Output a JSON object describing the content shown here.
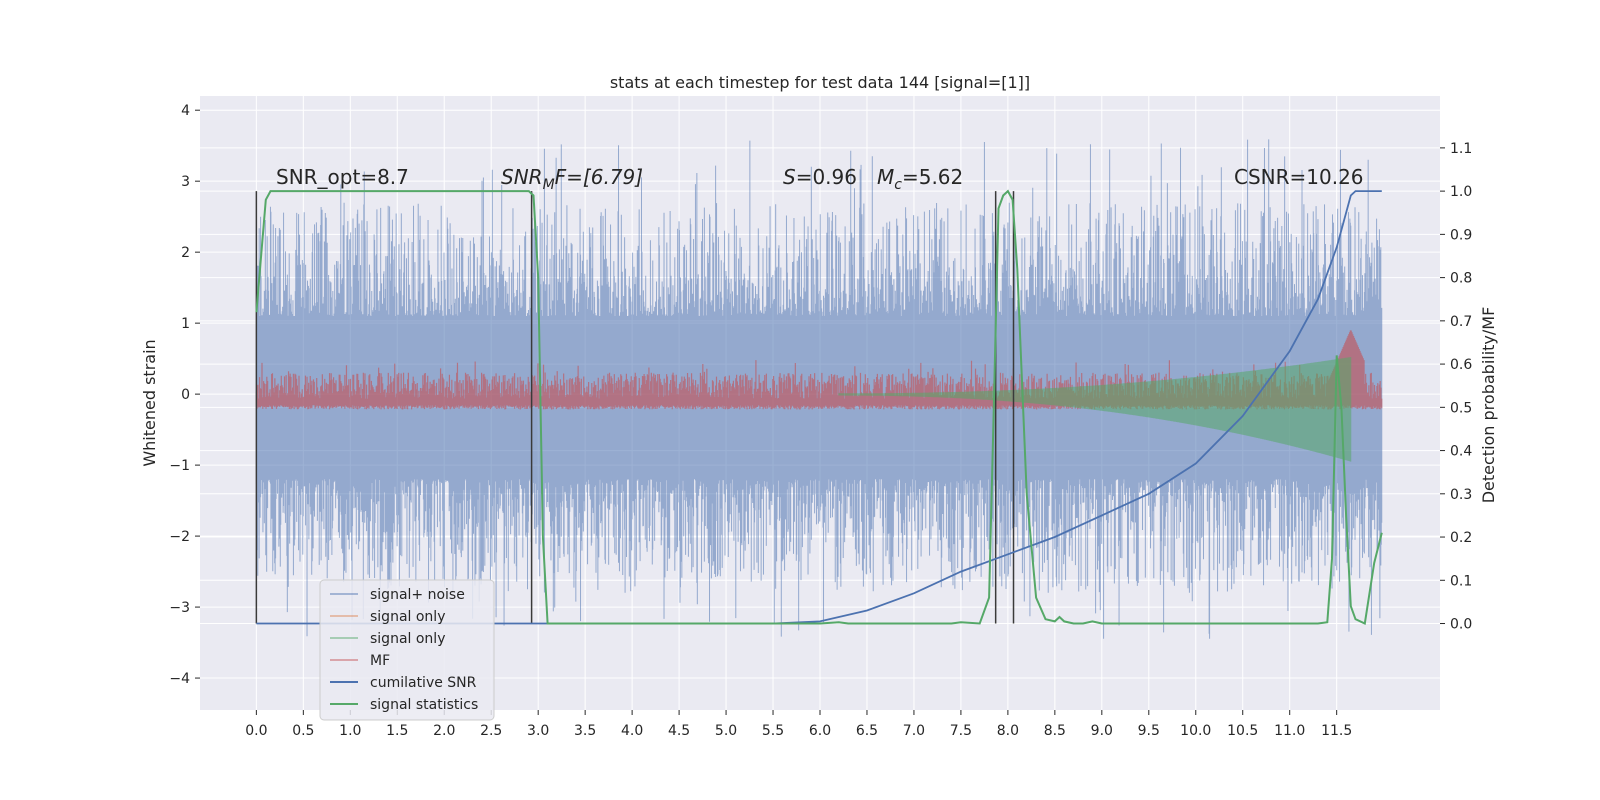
{
  "chart_data": {
    "type": "line",
    "title": "stats at each timestep for test data 144 [signal=[1]]",
    "xlabel": "",
    "ylabel": "Whitened strain",
    "y2label": "Detection probability/MF",
    "xlim": [
      -0.6,
      12.6
    ],
    "ylim": [
      -4.45,
      4.2
    ],
    "y2lim": [
      -0.2,
      1.22
    ],
    "x_ticks": [
      0.0,
      0.5,
      1.0,
      1.5,
      2.0,
      2.5,
      3.0,
      3.5,
      4.0,
      4.5,
      5.0,
      5.5,
      6.0,
      6.5,
      7.0,
      7.5,
      8.0,
      8.5,
      9.0,
      9.5,
      10.0,
      10.5,
      11.0,
      11.5
    ],
    "x_tick_labels": [
      "0.0",
      "0.5",
      "1.0",
      "1.5",
      "2.0",
      "2.5",
      "3.0",
      "3.5",
      "4.0",
      "4.5",
      "5.0",
      "5.5",
      "6.0",
      "6.5",
      "7.0",
      "7.5",
      "8.0",
      "8.5",
      "9.0",
      "9.5",
      "10.0",
      "10.5",
      "11.0",
      "11.5"
    ],
    "y_ticks": [
      4,
      3,
      2,
      1,
      0,
      -1,
      -2,
      -3,
      -4
    ],
    "y_tick_labels": [
      "4",
      "3",
      "2",
      "1",
      "0",
      "−1",
      "−2",
      "−3",
      "−4"
    ],
    "y2_ticks": [
      1.1,
      1.0,
      0.9,
      0.8,
      0.7,
      0.6,
      0.5,
      0.4,
      0.3,
      0.2,
      0.1,
      0.0
    ],
    "y2_tick_labels": [
      "1.1",
      "1.0",
      "0.9",
      "0.8",
      "0.7",
      "0.6",
      "0.5",
      "0.4",
      "0.3",
      "0.2",
      "0.1",
      "0.0"
    ],
    "grid": true,
    "legend_position": "lower-left",
    "annotations": {
      "snr_opt": "SNR_opt=8.7",
      "snr_mf_main": "SNR",
      "snr_mf_sub": "M",
      "snr_mf_rest": "F=[6.79]",
      "s_main": "S",
      "s_rest": "=0.96",
      "mc_main": "M",
      "mc_sub": "c",
      "mc_rest": "=5.62",
      "csnr": "CSNR=10.26"
    },
    "series": [
      {
        "name": "signal+ noise",
        "color": "#4c72b0",
        "axis": "left",
        "style": "noise",
        "x_range": [
          0.0,
          11.98
        ],
        "envelope": [
          -3.45,
          3.8
        ]
      },
      {
        "name": "signal only",
        "color": "#dd8452",
        "axis": "left",
        "style": "chirp"
      },
      {
        "name": "signal only",
        "color": "#55a868",
        "axis": "left",
        "style": "chirp",
        "x_range": [
          6.2,
          11.65
        ],
        "amplitude_start": 0.02,
        "amplitude_end": 0.95
      },
      {
        "name": "MF",
        "color": "#c44e52",
        "axis": "right",
        "style": "mf",
        "x_range": [
          0.0,
          11.98
        ],
        "band": [
          0.5,
          0.6
        ],
        "peak": [
          11.65,
          0.68
        ]
      },
      {
        "name": "cumilative SNR",
        "color": "#4c72b0",
        "axis": "right",
        "x": [
          0.0,
          5.5,
          6.0,
          6.5,
          7.0,
          7.5,
          8.0,
          8.5,
          9.0,
          9.5,
          10.0,
          10.5,
          11.0,
          11.3,
          11.5,
          11.65,
          11.7,
          11.98
        ],
        "values": [
          0.0,
          0.0,
          0.005,
          0.03,
          0.07,
          0.12,
          0.16,
          0.2,
          0.25,
          0.3,
          0.37,
          0.48,
          0.63,
          0.75,
          0.87,
          0.99,
          1.0,
          1.0
        ]
      },
      {
        "name": "signal statistics",
        "color": "#55a868",
        "axis": "right",
        "x": [
          0.0,
          0.1,
          0.15,
          2.9,
          2.95,
          3.0,
          3.05,
          3.1,
          6.0,
          6.2,
          6.3,
          7.4,
          7.5,
          7.7,
          7.8,
          7.85,
          7.9,
          7.95,
          8.0,
          8.05,
          8.1,
          8.2,
          8.3,
          8.4,
          8.5,
          8.55,
          8.6,
          8.7,
          8.8,
          8.9,
          9.0,
          10.0,
          11.0,
          11.3,
          11.4,
          11.45,
          11.5,
          11.55,
          11.6,
          11.65,
          11.7,
          11.8,
          11.9,
          11.98
        ],
        "values": [
          0.72,
          0.98,
          1.0,
          1.0,
          0.99,
          0.8,
          0.2,
          0.0,
          0.0,
          0.003,
          0.0,
          0.0,
          0.003,
          0.0,
          0.06,
          0.5,
          0.96,
          0.99,
          1.0,
          0.98,
          0.82,
          0.3,
          0.06,
          0.01,
          0.005,
          0.015,
          0.005,
          0.0,
          0.0,
          0.005,
          0.0,
          0.0,
          0.0,
          0.0,
          0.003,
          0.15,
          0.62,
          0.5,
          0.25,
          0.04,
          0.01,
          0.0,
          0.14,
          0.21
        ]
      }
    ],
    "vertical_markers": [
      0.0,
      2.93,
      7.87,
      8.06
    ]
  }
}
